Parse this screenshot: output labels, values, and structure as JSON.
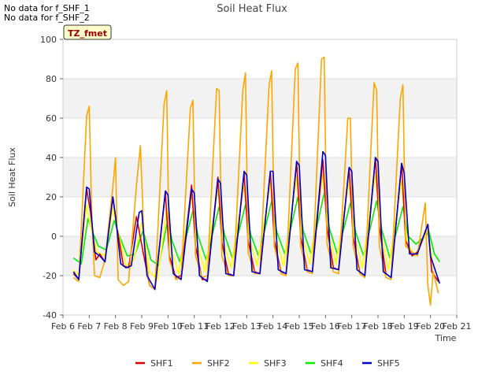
{
  "notes": [
    "No data for f_SHF_1",
    "No data for f_SHF_2"
  ],
  "badge": "TZ_fmet",
  "chart_data": {
    "type": "line",
    "title": "Soil Heat Flux",
    "xlabel": "Time",
    "ylabel": "Soil Heat Flux",
    "xlim": [
      6,
      21
    ],
    "ylim": [
      -40,
      100
    ],
    "x_ticks": [
      {
        "value": 6,
        "label": "Feb 6"
      },
      {
        "value": 7,
        "label": "Feb 7"
      },
      {
        "value": 8,
        "label": "Feb 8"
      },
      {
        "value": 9,
        "label": "Feb 9"
      },
      {
        "value": 10,
        "label": "Feb 10"
      },
      {
        "value": 11,
        "label": "Feb 11"
      },
      {
        "value": 12,
        "label": "Feb 12"
      },
      {
        "value": 13,
        "label": "Feb 13"
      },
      {
        "value": 14,
        "label": "Feb 14"
      },
      {
        "value": 15,
        "label": "Feb 15"
      },
      {
        "value": 16,
        "label": "Feb 16"
      },
      {
        "value": 17,
        "label": "Feb 17"
      },
      {
        "value": 18,
        "label": "Feb 18"
      },
      {
        "value": 19,
        "label": "Feb 19"
      },
      {
        "value": 20,
        "label": "Feb 20"
      },
      {
        "value": 21,
        "label": "Feb 21"
      }
    ],
    "y_ticks": [
      -40,
      -20,
      0,
      20,
      40,
      60,
      80,
      100
    ],
    "grid": true,
    "legend_position": "bottom",
    "series": [
      {
        "name": "SHF1",
        "color": "#dd0000",
        "x": [
          6.4,
          6.6,
          6.9,
          7.05,
          7.25,
          7.4,
          7.6,
          7.9,
          8.05,
          8.3,
          8.5,
          8.8,
          9.05,
          9.3,
          9.5,
          9.9,
          10.05,
          10.3,
          10.5,
          10.9,
          11.05,
          11.3,
          11.5,
          11.9,
          12.05,
          12.3,
          12.5,
          12.9,
          13.05,
          13.3,
          13.5,
          13.9,
          14.05,
          14.3,
          14.5,
          14.9,
          15.05,
          15.3,
          15.5,
          15.9,
          16.05,
          16.3,
          16.5,
          16.9,
          17.05,
          17.3,
          17.5,
          17.9,
          18.05,
          18.3,
          18.5,
          18.9,
          19.05,
          19.3,
          19.5,
          19.9,
          20.05,
          20.3
        ],
        "y": [
          -19,
          -22,
          24,
          12,
          -12,
          -9,
          -13,
          20,
          5,
          -15,
          -16,
          10,
          -8,
          -25,
          -27,
          22,
          -10,
          -21,
          -20,
          26,
          -5,
          -22,
          -22,
          30,
          -3,
          -19,
          -20,
          32,
          -2,
          -18,
          -19,
          33,
          -2,
          -18,
          -19,
          38,
          0,
          -17,
          -18,
          39,
          5,
          -16,
          -17,
          35,
          0,
          -18,
          -20,
          40,
          5,
          -19,
          -21,
          37,
          -2,
          -10,
          -8,
          6,
          -18,
          -23
        ]
      },
      {
        "name": "SHF2",
        "color": "#ffa500",
        "x": [
          6.4,
          6.6,
          6.9,
          7.0,
          7.1,
          7.2,
          7.4,
          7.6,
          7.9,
          8.0,
          8.1,
          8.3,
          8.5,
          8.8,
          8.95,
          9.1,
          9.3,
          9.5,
          9.85,
          9.95,
          10.05,
          10.3,
          10.5,
          10.85,
          10.95,
          11.05,
          11.3,
          11.5,
          11.85,
          11.95,
          12.05,
          12.3,
          12.5,
          12.85,
          12.95,
          13.05,
          13.3,
          13.5,
          13.85,
          13.95,
          14.05,
          14.3,
          14.5,
          14.85,
          14.95,
          15.05,
          15.3,
          15.5,
          15.85,
          15.95,
          16.05,
          16.3,
          16.5,
          16.85,
          16.95,
          17.05,
          17.3,
          17.5,
          17.85,
          17.95,
          18.05,
          18.3,
          18.5,
          18.85,
          18.95,
          19.05,
          19.3,
          19.5,
          19.8,
          19.9,
          20.0,
          20.1,
          20.3
        ],
        "y": [
          -21,
          -23,
          61,
          66,
          8,
          -20,
          -21,
          -12,
          25,
          40,
          -22,
          -25,
          -23,
          26,
          46,
          -5,
          -25,
          -27,
          67,
          74,
          -12,
          -22,
          -21,
          65,
          69,
          -10,
          -21,
          -20,
          75,
          74,
          -10,
          -20,
          -20,
          74,
          83,
          -8,
          -19,
          -19,
          77,
          84,
          -5,
          -19,
          -20,
          85,
          88,
          -5,
          -18,
          -19,
          90,
          91,
          -3,
          -18,
          -19,
          60,
          60,
          -5,
          -19,
          -21,
          78,
          74,
          -5,
          -21,
          -22,
          70,
          77,
          -5,
          -8,
          -10,
          17,
          -25,
          -35,
          -18,
          -29
        ]
      },
      {
        "name": "SHF3",
        "color": "#ffff00",
        "x": [
          6.4,
          6.6,
          6.9,
          7.05,
          7.3,
          7.6,
          7.9,
          8.1,
          8.4,
          8.7,
          9.0,
          9.3,
          9.6,
          9.95,
          10.1,
          10.4,
          10.9,
          11.1,
          11.4,
          11.9,
          12.1,
          12.4,
          12.9,
          13.1,
          13.4,
          13.9,
          14.1,
          14.4,
          14.9,
          15.1,
          15.4,
          15.9,
          16.1,
          16.4,
          16.9,
          17.1,
          17.4,
          17.9,
          18.1,
          18.4,
          18.9,
          19.1,
          19.4,
          19.9,
          20.1,
          20.3
        ],
        "y": [
          -17,
          -20,
          16,
          5,
          -8,
          -10,
          14,
          2,
          -15,
          -12,
          7,
          -18,
          -22,
          14,
          -5,
          -19,
          20,
          -3,
          -18,
          24,
          -2,
          -16,
          26,
          -1,
          -15,
          27,
          0,
          -15,
          30,
          1,
          -14,
          31,
          3,
          -14,
          28,
          0,
          -16,
          32,
          3,
          -17,
          28,
          -3,
          -10,
          3,
          -15,
          -22
        ]
      },
      {
        "name": "SHF4",
        "color": "#00ee00",
        "x": [
          6.4,
          6.7,
          6.95,
          7.1,
          7.35,
          7.65,
          7.95,
          8.15,
          8.45,
          8.75,
          9.05,
          9.35,
          9.65,
          10.0,
          10.15,
          10.45,
          10.95,
          11.15,
          11.45,
          11.95,
          12.15,
          12.45,
          12.95,
          13.15,
          13.45,
          13.95,
          14.15,
          14.45,
          14.95,
          15.15,
          15.45,
          15.95,
          16.15,
          16.45,
          16.95,
          17.15,
          17.45,
          17.95,
          18.15,
          18.45,
          18.95,
          19.15,
          19.45,
          19.95,
          20.15,
          20.35
        ],
        "y": [
          -11,
          -14,
          9,
          3,
          -5,
          -7,
          8,
          0,
          -10,
          -9,
          3,
          -12,
          -15,
          9,
          -2,
          -13,
          13,
          0,
          -12,
          15,
          1,
          -11,
          16,
          1,
          -10,
          18,
          2,
          -9,
          20,
          3,
          -9,
          22,
          4,
          -9,
          17,
          2,
          -10,
          18,
          3,
          -11,
          15,
          0,
          -4,
          2,
          -9,
          -13
        ]
      },
      {
        "name": "SHF5",
        "color": "#0000cc",
        "x": [
          6.4,
          6.6,
          6.9,
          7.0,
          7.2,
          7.4,
          7.6,
          7.9,
          8.0,
          8.2,
          8.4,
          8.6,
          8.9,
          9.0,
          9.2,
          9.5,
          9.9,
          10.0,
          10.2,
          10.5,
          10.9,
          11.0,
          11.2,
          11.5,
          11.9,
          12.0,
          12.2,
          12.5,
          12.9,
          13.0,
          13.2,
          13.5,
          13.9,
          14.0,
          14.2,
          14.5,
          14.9,
          15.0,
          15.2,
          15.5,
          15.9,
          16.0,
          16.2,
          16.5,
          16.9,
          17.0,
          17.2,
          17.5,
          17.9,
          18.0,
          18.2,
          18.5,
          18.9,
          19.0,
          19.2,
          19.5,
          19.9,
          20.0,
          20.2,
          20.35
        ],
        "y": [
          -18,
          -22,
          25,
          24,
          -8,
          -10,
          -13,
          20,
          10,
          -14,
          -16,
          -15,
          12,
          13,
          -20,
          -27,
          23,
          21,
          -19,
          -22,
          24,
          22,
          -20,
          -23,
          29,
          27,
          -19,
          -20,
          33,
          31,
          -18,
          -19,
          33,
          33,
          -17,
          -19,
          38,
          36,
          -17,
          -18,
          43,
          41,
          -16,
          -17,
          35,
          33,
          -17,
          -20,
          40,
          38,
          -18,
          -21,
          37,
          32,
          -9,
          -9,
          6,
          -10,
          -18,
          -24
        ]
      }
    ]
  }
}
